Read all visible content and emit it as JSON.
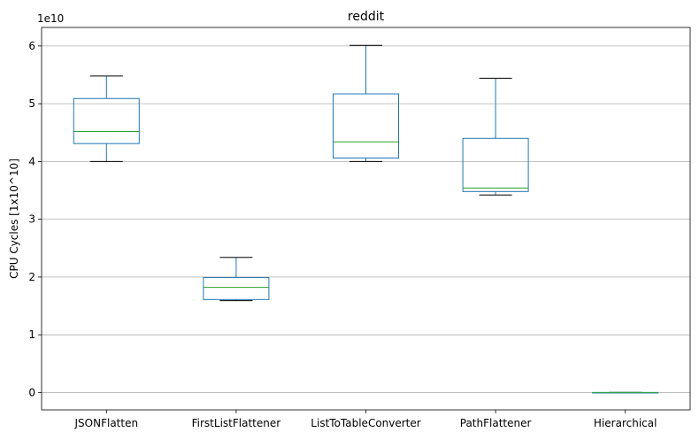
{
  "chart_data": {
    "type": "box",
    "title": "reddit",
    "ylabel": "CPU Cycles [1x10^10]",
    "xlabel": "",
    "offset_text": "1e10",
    "ylim": [
      -0.3,
      6.32
    ],
    "yticks": [
      0,
      1,
      2,
      3,
      4,
      5,
      6
    ],
    "grid_y": true,
    "colors": {
      "box": "#1f77b4",
      "median": "#2ca02c",
      "whisker": "#1f77b4",
      "cap": "#000000",
      "grid": "#b0b0b0"
    },
    "categories": [
      "JSONFlatten",
      "FirstListFlattener",
      "ListToTableConverter",
      "PathFlattener",
      "Hierarchical"
    ],
    "boxes": [
      {
        "name": "JSONFlatten",
        "whislo": 4.0,
        "q1": 4.31,
        "med": 4.52,
        "q3": 5.09,
        "whishi": 5.48
      },
      {
        "name": "FirstListFlattener",
        "whislo": 1.59,
        "q1": 1.61,
        "med": 1.82,
        "q3": 1.99,
        "whishi": 2.34
      },
      {
        "name": "ListToTableConverter",
        "whislo": 4.0,
        "q1": 4.06,
        "med": 4.34,
        "q3": 5.17,
        "whishi": 6.01
      },
      {
        "name": "PathFlattener",
        "whislo": 3.42,
        "q1": 3.48,
        "med": 3.54,
        "q3": 4.4,
        "whishi": 5.44
      },
      {
        "name": "Hierarchical",
        "whislo": 0.0,
        "q1": 0.0,
        "med": 0.0,
        "q3": 0.0,
        "whishi": 0.0
      }
    ]
  }
}
